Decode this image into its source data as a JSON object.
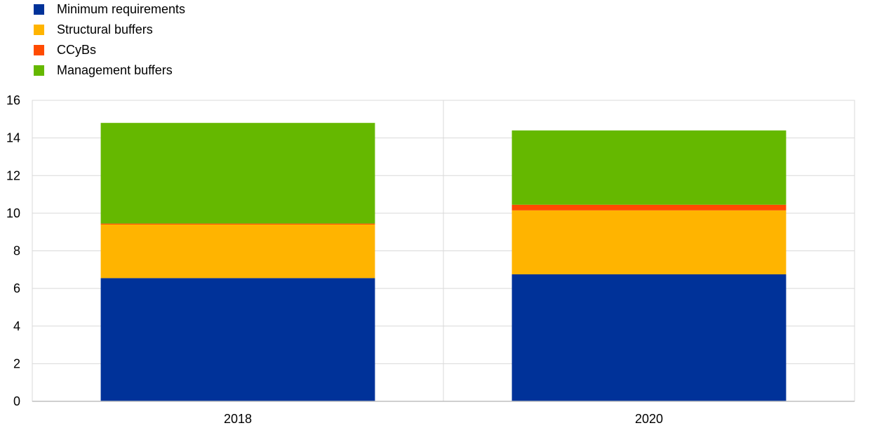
{
  "chart_data": {
    "type": "bar",
    "stacked": true,
    "categories": [
      "2018",
      "2020"
    ],
    "series": [
      {
        "name": "Minimum requirements",
        "color": "#003299",
        "values": [
          6.55,
          6.75
        ]
      },
      {
        "name": "Structural buffers",
        "color": "#FFB400",
        "values": [
          2.85,
          3.4
        ]
      },
      {
        "name": "CCyBs",
        "color": "#FF4B00",
        "values": [
          0.05,
          0.3
        ]
      },
      {
        "name": "Management buffers",
        "color": "#65B800",
        "values": [
          5.35,
          3.95
        ]
      }
    ],
    "ylim": [
      0,
      16
    ],
    "yticks": [
      "0",
      "2",
      "4",
      "6",
      "8",
      "10",
      "12",
      "14",
      "16"
    ],
    "grid": true,
    "legend_position": "top-left",
    "title": "",
    "xlabel": "",
    "ylabel": ""
  }
}
